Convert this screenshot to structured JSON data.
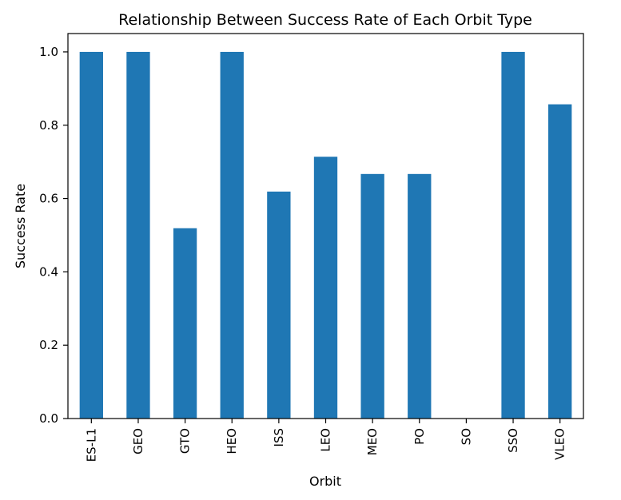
{
  "chart_data": {
    "type": "bar",
    "title": "Relationship Between Success Rate of Each Orbit Type",
    "xlabel": "Orbit",
    "ylabel": "Success Rate",
    "categories": [
      "ES-L1",
      "GEO",
      "GTO",
      "HEO",
      "ISS",
      "LEO",
      "MEO",
      "PO",
      "SO",
      "SSO",
      "VLEO"
    ],
    "values": [
      1.0,
      1.0,
      0.519,
      1.0,
      0.619,
      0.714,
      0.667,
      0.667,
      0.0,
      1.0,
      0.857
    ],
    "ylim": [
      0,
      1.05
    ],
    "yticks": [
      0.0,
      0.2,
      0.4,
      0.6,
      0.8,
      1.0
    ],
    "ytick_labels": [
      "0.0",
      "0.2",
      "0.4",
      "0.6",
      "0.8",
      "1.0"
    ],
    "bar_color": "#1f77b4",
    "grid": false,
    "legend": "none"
  }
}
